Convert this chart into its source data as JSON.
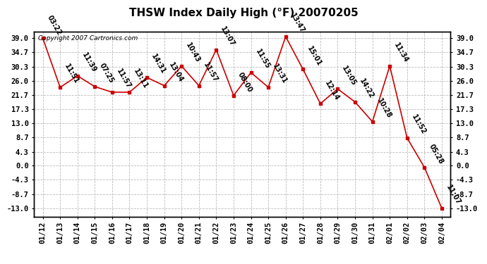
{
  "title": "THSW Index Daily High (°F) 20070205",
  "copyright": "Copyright 2007 Cartronics.com",
  "dates": [
    "01/12",
    "01/13",
    "01/14",
    "01/15",
    "01/16",
    "01/17",
    "01/18",
    "01/19",
    "01/20",
    "01/21",
    "01/22",
    "01/23",
    "01/24",
    "01/25",
    "01/26",
    "01/27",
    "01/28",
    "01/29",
    "01/30",
    "01/31",
    "02/01",
    "02/02",
    "02/03",
    "02/04"
  ],
  "values": [
    39.0,
    24.0,
    27.5,
    24.2,
    22.5,
    22.5,
    27.0,
    24.5,
    30.5,
    24.5,
    35.5,
    21.5,
    28.5,
    24.0,
    39.5,
    29.5,
    19.0,
    23.5,
    19.5,
    13.5,
    30.5,
    8.5,
    -0.5,
    -13.0
  ],
  "times": [
    "03:22",
    "11:51",
    "11:39",
    "07:25",
    "11:57",
    "13:11",
    "14:31",
    "13:04",
    "10:43",
    "11:57",
    "13:07",
    "08:00",
    "11:55",
    "13:31",
    "13:47",
    "15:01",
    "12:14",
    "13:05",
    "14:22",
    "10:28",
    "11:34",
    "11:52",
    "05:28",
    "11:07"
  ],
  "yticks": [
    -13.0,
    -8.7,
    -4.3,
    0.0,
    4.3,
    8.7,
    13.0,
    17.3,
    21.7,
    26.0,
    30.3,
    34.7,
    39.0
  ],
  "line_color": "#cc0000",
  "marker_color": "#cc0000",
  "bg_color": "#ffffff",
  "grid_color": "#bbbbbb",
  "title_fontsize": 11,
  "tick_fontsize": 7.5,
  "annotation_fontsize": 7
}
